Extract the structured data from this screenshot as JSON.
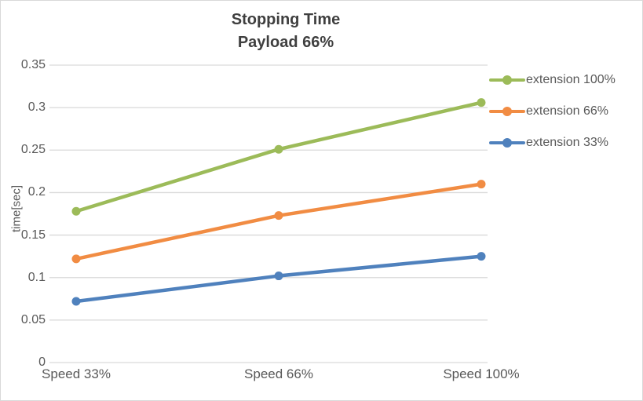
{
  "palette": {
    "background": "#ffffff",
    "frame_border": "#d9d9d9",
    "gridline": "#d9d9d9",
    "axis_text": "#595959",
    "title_text": "#3f3f3f"
  },
  "chart_data": {
    "type": "line",
    "title": "Stopping Time – Payload 66%",
    "title_lines": [
      "Stopping Time",
      "Payload 66%"
    ],
    "categories": [
      "Speed 33%",
      "Speed 66%",
      "Speed 100%"
    ],
    "series": [
      {
        "name": "extension 100%",
        "color": "#9cbb59",
        "values": [
          0.178,
          0.251,
          0.306
        ]
      },
      {
        "name": "extension 66%",
        "color": "#f18c43",
        "values": [
          0.122,
          0.173,
          0.21
        ]
      },
      {
        "name": "extension 33%",
        "color": "#4f81bd",
        "values": [
          0.072,
          0.102,
          0.125
        ]
      }
    ],
    "xlabel": "",
    "ylabel": "time[sec]",
    "ylim": [
      0,
      0.35
    ],
    "ytick_step": 0.05,
    "ytick_labels": [
      "0",
      "0.05",
      "0.1",
      "0.15",
      "0.2",
      "0.25",
      "0.3",
      "0.35"
    ],
    "grid": true,
    "legend_position": "right",
    "marker": "circle"
  }
}
